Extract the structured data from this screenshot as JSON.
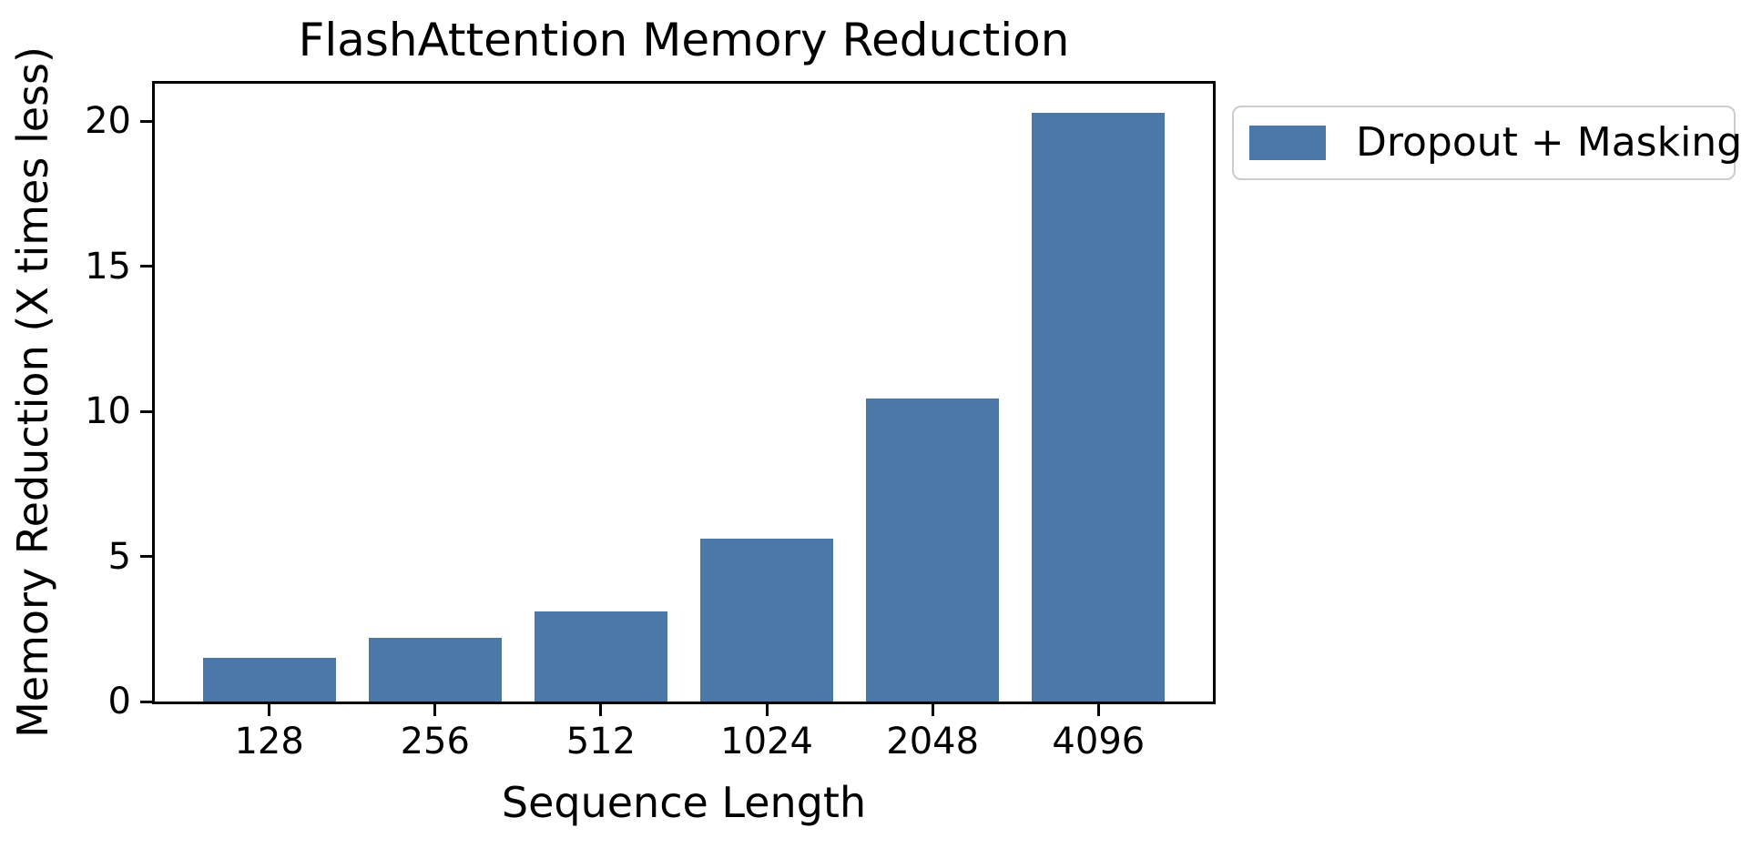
{
  "figure": {
    "title": "FlashAttention Memory Reduction",
    "xlabel": "Sequence Length",
    "ylabel": "Memory Reduction (X times less)",
    "background_color": "#ffffff",
    "text_color": "#000000",
    "spine_color": "#000000"
  },
  "legend": {
    "label": "Dropout + Masking",
    "swatch_color": "#4C78A8",
    "border_color": "#cccccc",
    "position": "outside-upper-right"
  },
  "chart_data": {
    "type": "bar",
    "title": "FlashAttention Memory Reduction",
    "xlabel": "Sequence Length",
    "ylabel": "Memory Reduction (X times less)",
    "categories": [
      "128",
      "256",
      "512",
      "1024",
      "2048",
      "4096"
    ],
    "series": [
      {
        "name": "Dropout + Masking",
        "values": [
          1.5,
          2.2,
          3.1,
          5.6,
          10.45,
          20.3
        ],
        "color": "#4C78A8"
      }
    ],
    "yticks": [
      0,
      5,
      10,
      15,
      20
    ],
    "ylim": [
      0,
      21.3
    ],
    "xlim": [
      -0.69,
      5.69
    ],
    "bar_width": 0.8,
    "grid": false,
    "legend_position": "outside-upper-right"
  }
}
